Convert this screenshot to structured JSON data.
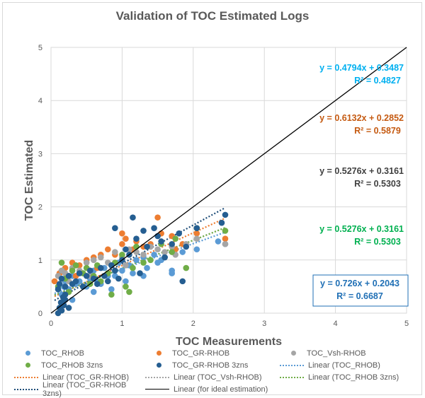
{
  "chart_data": {
    "type": "scatter",
    "title": "Validation  of TOC Estimated Logs",
    "xlabel": "TOC Measurements",
    "ylabel": "TOC Estimated",
    "xlim": [
      0,
      5
    ],
    "ylim": [
      0,
      5
    ],
    "xticks": [
      "0",
      "1",
      "2",
      "3",
      "4",
      "5"
    ],
    "yticks": [
      "0",
      "1",
      "2",
      "3",
      "4",
      "5"
    ],
    "grid": true,
    "legend_position": "bottom",
    "series": [
      {
        "name": "TOC_RHOB",
        "color": "#5b9bd5",
        "kind": "scatter",
        "points": [
          [
            0.15,
            0.35
          ],
          [
            0.18,
            0.5
          ],
          [
            0.2,
            0.6
          ],
          [
            0.25,
            0.45
          ],
          [
            0.3,
            0.7
          ],
          [
            0.35,
            0.55
          ],
          [
            0.4,
            0.6
          ],
          [
            0.45,
            0.75
          ],
          [
            0.5,
            0.5
          ],
          [
            0.55,
            0.65
          ],
          [
            0.6,
            0.8
          ],
          [
            0.65,
            0.6
          ],
          [
            0.7,
            0.55
          ],
          [
            0.75,
            0.85
          ],
          [
            0.8,
            0.7
          ],
          [
            0.85,
            0.45
          ],
          [
            0.9,
            0.7
          ],
          [
            0.95,
            0.95
          ],
          [
            1.0,
            0.8
          ],
          [
            1.05,
            0.6
          ],
          [
            1.1,
            0.9
          ],
          [
            1.15,
            0.75
          ],
          [
            1.2,
            1.0
          ],
          [
            1.3,
            1.05
          ],
          [
            1.35,
            0.85
          ],
          [
            1.45,
            1.1
          ],
          [
            1.5,
            0.95
          ],
          [
            1.55,
            1.0
          ],
          [
            1.6,
            1.05
          ],
          [
            1.7,
            0.8
          ],
          [
            1.7,
            0.75
          ],
          [
            1.85,
            1.15
          ],
          [
            2.05,
            1.2
          ],
          [
            2.35,
            1.35
          ],
          [
            2.45,
            1.3
          ],
          [
            1.3,
            0.7
          ],
          [
            0.3,
            0.25
          ],
          [
            0.6,
            0.4
          ]
        ]
      },
      {
        "name": "TOC_GR-RHOB",
        "color": "#ed7d31",
        "kind": "scatter",
        "points": [
          [
            0.05,
            0.6
          ],
          [
            0.12,
            0.75
          ],
          [
            0.2,
            0.85
          ],
          [
            0.3,
            0.95
          ],
          [
            0.4,
            0.9
          ],
          [
            0.5,
            1.0
          ],
          [
            0.6,
            1.05
          ],
          [
            0.7,
            1.1
          ],
          [
            0.8,
            1.2
          ],
          [
            0.9,
            1.1
          ],
          [
            1.0,
            1.3
          ],
          [
            1.05,
            1.4
          ],
          [
            1.15,
            1.2
          ],
          [
            1.2,
            1.35
          ],
          [
            1.3,
            1.25
          ],
          [
            1.4,
            1.3
          ],
          [
            1.5,
            1.8
          ],
          [
            1.55,
            1.5
          ],
          [
            1.7,
            1.45
          ],
          [
            1.75,
            1.2
          ],
          [
            1.85,
            1.3
          ],
          [
            2.05,
            1.5
          ],
          [
            2.45,
            1.4
          ],
          [
            1.0,
            1.5
          ],
          [
            0.35,
            0.7
          ],
          [
            0.65,
            0.85
          ]
        ]
      },
      {
        "name": "TOC_Vsh-RHOB",
        "color": "#a5a5a5",
        "kind": "scatter",
        "points": [
          [
            0.1,
            0.7
          ],
          [
            0.15,
            0.8
          ],
          [
            0.2,
            0.75
          ],
          [
            0.3,
            0.85
          ],
          [
            0.4,
            0.8
          ],
          [
            0.5,
            0.95
          ],
          [
            0.6,
            1.0
          ],
          [
            0.7,
            1.05
          ],
          [
            0.8,
            0.95
          ],
          [
            0.9,
            1.15
          ],
          [
            1.0,
            1.05
          ],
          [
            1.1,
            1.2
          ],
          [
            1.2,
            1.15
          ],
          [
            1.3,
            1.1
          ],
          [
            1.4,
            1.25
          ],
          [
            1.5,
            1.2
          ],
          [
            1.6,
            1.15
          ],
          [
            1.7,
            1.25
          ],
          [
            1.75,
            1.1
          ],
          [
            1.9,
            1.3
          ],
          [
            2.05,
            1.4
          ],
          [
            2.45,
            1.3
          ],
          [
            0.55,
            0.7
          ],
          [
            0.25,
            0.6
          ],
          [
            1.05,
            0.9
          ]
        ]
      },
      {
        "name": "TOC_RHOB 3zns",
        "color": "#70ad47",
        "kind": "scatter",
        "points": [
          [
            0.1,
            0.5
          ],
          [
            0.15,
            0.95
          ],
          [
            0.2,
            0.65
          ],
          [
            0.25,
            0.4
          ],
          [
            0.3,
            0.8
          ],
          [
            0.35,
            0.9
          ],
          [
            0.45,
            0.75
          ],
          [
            0.5,
            0.85
          ],
          [
            0.6,
            0.7
          ],
          [
            0.65,
            0.9
          ],
          [
            0.7,
            0.6
          ],
          [
            0.8,
            0.75
          ],
          [
            0.9,
            0.95
          ],
          [
            1.0,
            1.1
          ],
          [
            1.05,
            0.5
          ],
          [
            1.1,
            0.4
          ],
          [
            1.15,
            0.85
          ],
          [
            1.2,
            1.25
          ],
          [
            1.3,
            0.95
          ],
          [
            1.4,
            1.0
          ],
          [
            1.55,
            1.3
          ],
          [
            1.7,
            1.15
          ],
          [
            1.75,
            1.4
          ],
          [
            1.9,
            0.85
          ],
          [
            2.05,
            1.6
          ],
          [
            2.45,
            1.55
          ],
          [
            0.55,
            0.55
          ],
          [
            0.85,
            0.35
          ]
        ]
      },
      {
        "name": "TOC_GR-RHOB 3zns",
        "color": "#255e91",
        "kind": "scatter",
        "points": [
          [
            0.1,
            0.0
          ],
          [
            0.12,
            0.1
          ],
          [
            0.14,
            0.2
          ],
          [
            0.15,
            0.05
          ],
          [
            0.17,
            0.3
          ],
          [
            0.18,
            0.15
          ],
          [
            0.2,
            0.25
          ],
          [
            0.1,
            0.45
          ],
          [
            0.12,
            0.55
          ],
          [
            0.15,
            0.65
          ],
          [
            0.2,
            0.5
          ],
          [
            0.25,
            0.7
          ],
          [
            0.3,
            0.55
          ],
          [
            0.35,
            0.6
          ],
          [
            0.4,
            0.75
          ],
          [
            0.45,
            0.5
          ],
          [
            0.5,
            0.7
          ],
          [
            0.55,
            0.8
          ],
          [
            0.6,
            0.65
          ],
          [
            0.65,
            0.55
          ],
          [
            0.7,
            0.85
          ],
          [
            0.75,
            0.7
          ],
          [
            0.8,
            0.6
          ],
          [
            0.85,
            0.9
          ],
          [
            0.9,
            0.8
          ],
          [
            0.95,
            0.65
          ],
          [
            1.0,
            1.0
          ],
          [
            1.05,
            1.2
          ],
          [
            1.1,
            1.1
          ],
          [
            1.15,
            1.8
          ],
          [
            1.2,
            1.4
          ],
          [
            1.25,
            0.75
          ],
          [
            1.3,
            1.55
          ],
          [
            1.35,
            1.25
          ],
          [
            1.45,
            1.6
          ],
          [
            1.5,
            1.45
          ],
          [
            1.55,
            1.35
          ],
          [
            1.6,
            1.05
          ],
          [
            1.7,
            1.3
          ],
          [
            1.8,
            1.5
          ],
          [
            1.85,
            0.6
          ],
          [
            1.9,
            1.25
          ],
          [
            2.05,
            1.6
          ],
          [
            2.45,
            1.85
          ],
          [
            2.4,
            1.7
          ],
          [
            0.9,
            1.6
          ],
          [
            0.2,
            0.35
          ],
          [
            0.25,
            0.1
          ]
        ]
      },
      {
        "name": "Linear (TOC_GR-RHOB)",
        "color": "#ed7d31",
        "kind": "trend",
        "style": "dotted",
        "slope": 0.6132,
        "intercept": 0.2852,
        "x_range": [
          0.05,
          2.45
        ]
      },
      {
        "name": "Linear (TOC_Vsh-RHOB)",
        "color": "#a5a5a5",
        "kind": "trend",
        "style": "dotted",
        "slope": 0.5276,
        "intercept": 0.3161,
        "x_range": [
          0.05,
          2.45
        ]
      },
      {
        "name": "Linear (TOC_RHOB)",
        "color": "#5b9bd5",
        "kind": "trend",
        "style": "dotted",
        "slope": 0.4794,
        "intercept": 0.3487,
        "x_range": [
          0.05,
          2.45
        ]
      },
      {
        "name": "Linear (TOC_RHOB 3zns)",
        "color": "#70ad47",
        "kind": "trend",
        "style": "dotted",
        "slope": 0.5276,
        "intercept": 0.3161,
        "x_range": [
          0.05,
          2.45
        ]
      },
      {
        "name": "Linear (TOC_GR-RHOB 3zns)",
        "color": "#1f4e79",
        "kind": "trend",
        "style": "dotted",
        "slope": 0.726,
        "intercept": 0.2043,
        "x_range": [
          0.05,
          2.45
        ]
      },
      {
        "name": "Linear (for ideal estimation)",
        "color": "#000000",
        "kind": "trend",
        "style": "solid",
        "slope": 1,
        "intercept": 0,
        "x_range": [
          0,
          5
        ]
      }
    ],
    "annotations": [
      {
        "equation": "y = 0.4794x + 0.3487",
        "r2": "R² = 0.4827",
        "color": "#00b0f0",
        "boxed": false
      },
      {
        "equation": "y = 0.6132x + 0.2852",
        "r2": "R² = 0.5879",
        "color": "#c55a11",
        "boxed": false
      },
      {
        "equation": "y = 0.5276x + 0.3161",
        "r2": "R² = 0.5303",
        "color": "#404040",
        "boxed": false
      },
      {
        "equation": "y = 0.5276x + 0.3161",
        "r2": "R² = 0.5303",
        "color": "#00b050",
        "boxed": false
      },
      {
        "equation": "y = 0.726x + 0.2043",
        "r2": "R² = 0.6687",
        "color": "#1f6fb5",
        "boxed": true
      }
    ]
  },
  "legend": [
    {
      "label": "TOC_RHOB",
      "type": "dot",
      "color": "#5b9bd5"
    },
    {
      "label": "TOC_GR-RHOB",
      "type": "dot",
      "color": "#ed7d31"
    },
    {
      "label": "TOC_Vsh-RHOB",
      "type": "dot",
      "color": "#a5a5a5"
    },
    {
      "label": "TOC_RHOB 3zns",
      "type": "dot",
      "color": "#70ad47"
    },
    {
      "label": "TOC_GR-RHOB 3zns",
      "type": "dot",
      "color": "#255e91"
    },
    {
      "label": "Linear (TOC_RHOB)",
      "type": "dotted",
      "color": "#5b9bd5"
    },
    {
      "label": "Linear (TOC_GR-RHOB)",
      "type": "dotted",
      "color": "#ed7d31"
    },
    {
      "label": "Linear (TOC_Vsh-RHOB)",
      "type": "dotted",
      "color": "#a5a5a5"
    },
    {
      "label": "Linear (TOC_RHOB 3zns)",
      "type": "dotted",
      "color": "#70ad47"
    },
    {
      "label": "Linear (TOC_GR-RHOB 3zns)",
      "type": "dotted",
      "color": "#1f4e79"
    },
    {
      "label": "Linear (for ideal estimation)",
      "type": "solid",
      "color": "#000000"
    }
  ]
}
